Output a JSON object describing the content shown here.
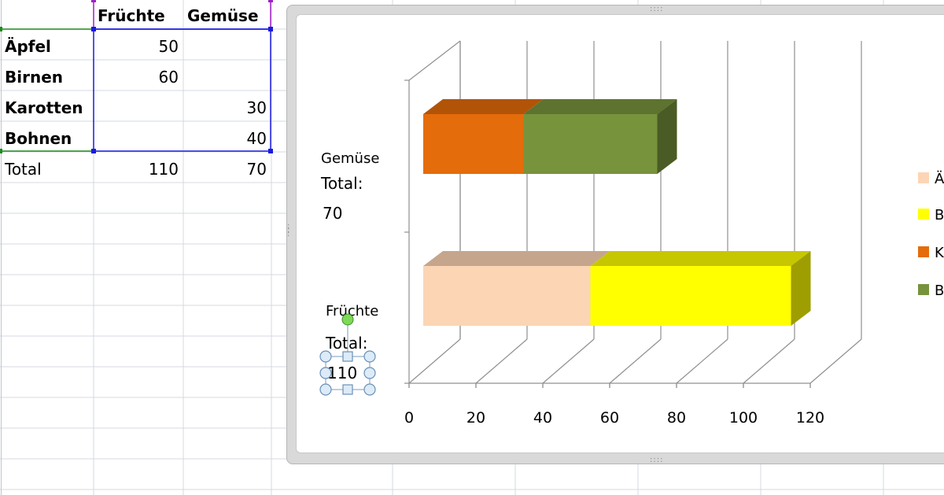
{
  "sheet": {
    "headers": [
      "Früchte",
      "Gemüse"
    ],
    "rows": [
      {
        "label": "Äpfel",
        "fruit": "50",
        "veg": ""
      },
      {
        "label": "Birnen",
        "fruit": "60",
        "veg": ""
      },
      {
        "label": "Karotten",
        "fruit": "",
        "veg": "30"
      },
      {
        "label": "Bohnen",
        "fruit": "",
        "veg": "40"
      }
    ],
    "total": {
      "label": "Total",
      "fruit": "110",
      "veg": "70"
    }
  },
  "chart_data": {
    "type": "bar",
    "orientation": "horizontal",
    "stacked": true,
    "three_d": true,
    "categories": [
      "Früchte",
      "Gemüse"
    ],
    "category_labels": [
      {
        "name": "Früchte",
        "total_label": "Total:",
        "total_value": "110"
      },
      {
        "name": "Gemüse",
        "total_label": "Total:",
        "total_value": "70"
      }
    ],
    "series": [
      {
        "name": "Äpfel",
        "values": [
          50,
          0
        ],
        "color": "#fcd5b4"
      },
      {
        "name": "Birnen",
        "values": [
          60,
          0
        ],
        "color": "#ffff00"
      },
      {
        "name": "Karotten",
        "values": [
          0,
          30
        ],
        "color": "#e46c0a"
      },
      {
        "name": "Bohnen",
        "values": [
          0,
          40
        ],
        "color": "#77933c"
      }
    ],
    "legend_visible": [
      "Ä",
      "B",
      "K",
      "B"
    ],
    "legend_position": "right",
    "xlim": [
      0,
      120
    ],
    "xticks": [
      "0",
      "20",
      "40",
      "60",
      "80",
      "100",
      "120"
    ],
    "grid": true
  }
}
